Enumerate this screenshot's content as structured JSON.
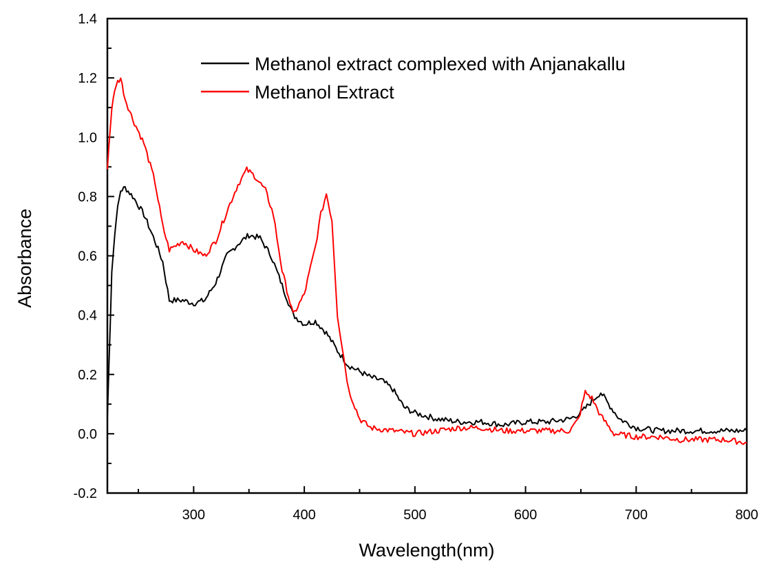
{
  "chart_data": {
    "type": "line",
    "title": "",
    "xlabel": "Wavelength(nm)",
    "ylabel": "Absorbance",
    "xlim": [
      222,
      800
    ],
    "ylim": [
      -0.2,
      1.4
    ],
    "xticks": [
      300,
      400,
      500,
      600,
      700,
      800
    ],
    "xtick_labels": [
      "300",
      "400",
      "500",
      "600",
      "700",
      "800"
    ],
    "yticks": [
      -0.2,
      0.0,
      0.2,
      0.4,
      0.6,
      0.8,
      1.0,
      1.2,
      1.4
    ],
    "ytick_labels": [
      "-0.2",
      "0.0",
      "0.2",
      "0.4",
      "0.6",
      "0.8",
      "1.0",
      "1.2",
      "1.4"
    ],
    "grid": false,
    "legend_position": "top-right",
    "series": [
      {
        "name": "Methanol extract complexed with Anjanakallu",
        "color": "#000000",
        "x": [
          222,
          226,
          230,
          234,
          238,
          245,
          255,
          265,
          272,
          278,
          290,
          300,
          310,
          320,
          330,
          340,
          350,
          360,
          370,
          380,
          390,
          400,
          410,
          420,
          430,
          440,
          450,
          460,
          470,
          480,
          490,
          500,
          520,
          540,
          560,
          580,
          600,
          620,
          640,
          650,
          660,
          668,
          675,
          685,
          700,
          720,
          740,
          760,
          780,
          800
        ],
        "y": [
          0.05,
          0.55,
          0.73,
          0.82,
          0.83,
          0.8,
          0.74,
          0.65,
          0.58,
          0.45,
          0.45,
          0.44,
          0.45,
          0.51,
          0.6,
          0.64,
          0.67,
          0.66,
          0.6,
          0.5,
          0.4,
          0.37,
          0.38,
          0.34,
          0.28,
          0.23,
          0.21,
          0.19,
          0.18,
          0.15,
          0.09,
          0.07,
          0.05,
          0.04,
          0.04,
          0.03,
          0.04,
          0.04,
          0.05,
          0.07,
          0.11,
          0.14,
          0.1,
          0.05,
          0.02,
          0.01,
          0.01,
          0.01,
          0.01,
          0.01
        ]
      },
      {
        "name": "Methanol Extract",
        "color": "#ff0000",
        "x": [
          222,
          226,
          230,
          234,
          238,
          245,
          255,
          265,
          272,
          278,
          290,
          300,
          310,
          320,
          330,
          340,
          348,
          355,
          365,
          372,
          380,
          390,
          400,
          410,
          415,
          420,
          425,
          430,
          440,
          450,
          460,
          480,
          500,
          520,
          540,
          560,
          580,
          600,
          620,
          640,
          648,
          654,
          660,
          668,
          680,
          700,
          720,
          740,
          760,
          780,
          800
        ],
        "y": [
          0.9,
          1.1,
          1.18,
          1.2,
          1.13,
          1.06,
          0.98,
          0.85,
          0.7,
          0.62,
          0.65,
          0.62,
          0.6,
          0.65,
          0.75,
          0.84,
          0.89,
          0.87,
          0.82,
          0.74,
          0.55,
          0.4,
          0.47,
          0.63,
          0.74,
          0.81,
          0.72,
          0.4,
          0.15,
          0.05,
          0.02,
          0.01,
          0.0,
          0.01,
          0.02,
          0.02,
          0.01,
          0.01,
          0.01,
          0.01,
          0.05,
          0.14,
          0.12,
          0.06,
          0.0,
          -0.01,
          -0.01,
          -0.02,
          -0.02,
          -0.02,
          -0.03
        ]
      }
    ]
  }
}
